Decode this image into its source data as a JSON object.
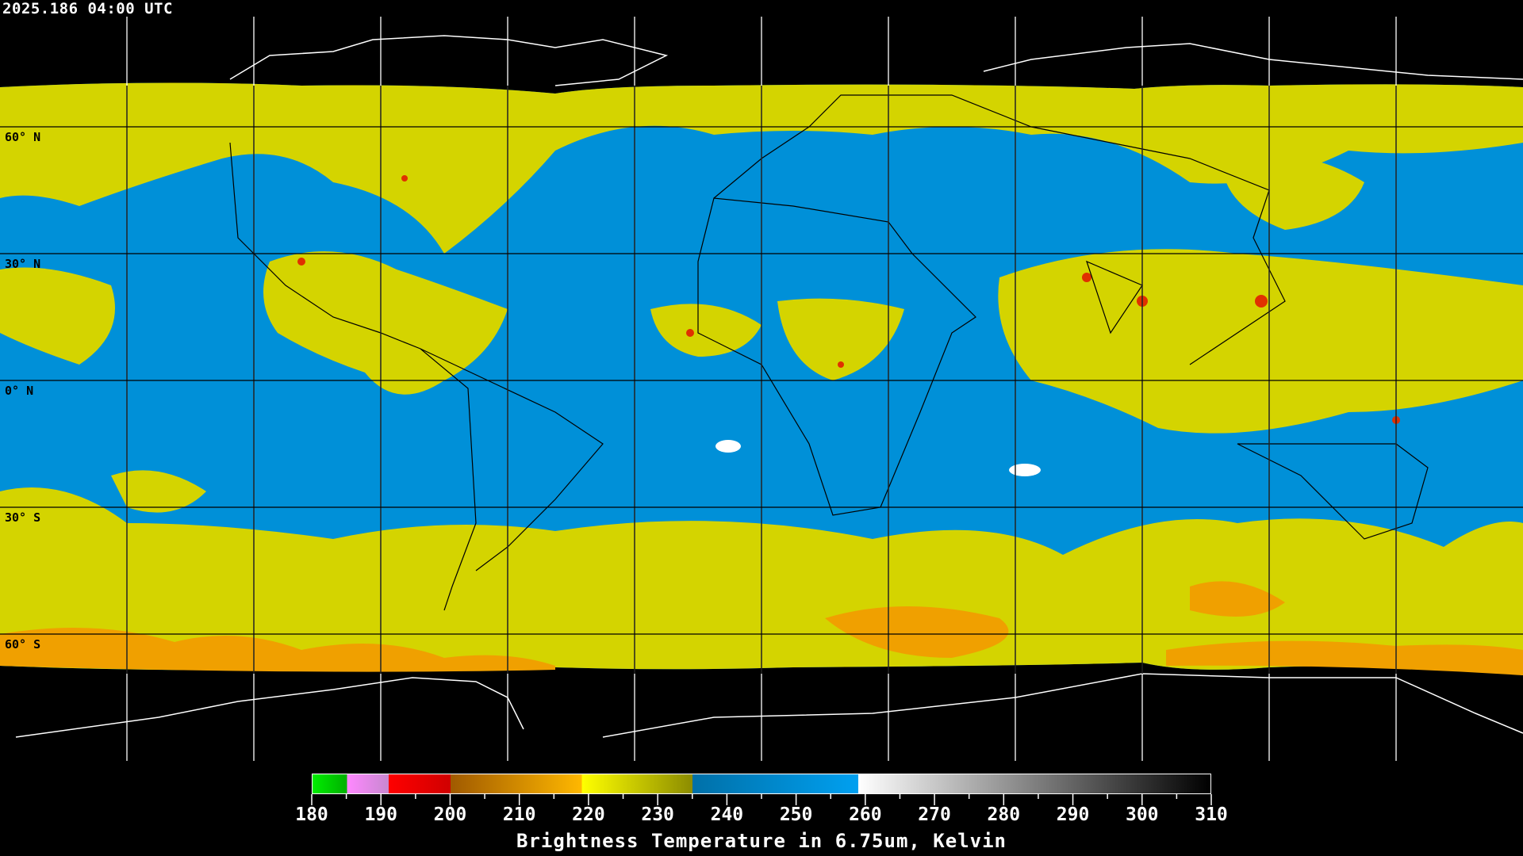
{
  "header": {
    "timestamp": "2025.186 04:00 UTC"
  },
  "map": {
    "projection": "equirectangular",
    "lat_labels": [
      "60° N",
      "30° N",
      "0° N",
      "30° S",
      "60° S"
    ],
    "lat_values": [
      60,
      30,
      0,
      -30,
      -60
    ],
    "lon_grid_spacing_deg": 30,
    "colors": {
      "background": "#000000",
      "cold_blue": "#0090d8",
      "moist_yellow": "#d8d800",
      "orange": "#f0a000",
      "red": "#e00000",
      "grid": "#000000",
      "grid_offdisk": "#ffffff",
      "coast": "#000000"
    }
  },
  "colorbar": {
    "min": 180,
    "max": 310,
    "tick_labels": [
      "180",
      "190",
      "200",
      "210",
      "220",
      "230",
      "240",
      "250",
      "260",
      "270",
      "280",
      "290",
      "300",
      "310"
    ],
    "title": "Brightness Temperature in 6.75um, Kelvin",
    "segments": [
      {
        "from": 180,
        "to": 185,
        "start": "#00ee00",
        "end": "#00b000"
      },
      {
        "from": 185,
        "to": 191,
        "start": "#ff88ff",
        "end": "#c888d0"
      },
      {
        "from": 191,
        "to": 200,
        "start": "#ff0000",
        "end": "#d00000"
      },
      {
        "from": 200,
        "to": 219,
        "start": "#a05a00",
        "end": "#ffb800"
      },
      {
        "from": 219,
        "to": 235,
        "start": "#ffff00",
        "end": "#8c8c00"
      },
      {
        "from": 235,
        "to": 259,
        "start": "#0070a8",
        "end": "#00a0f0"
      },
      {
        "from": 259,
        "to": 310,
        "start": "#ffffff",
        "end": "#000000"
      }
    ]
  }
}
